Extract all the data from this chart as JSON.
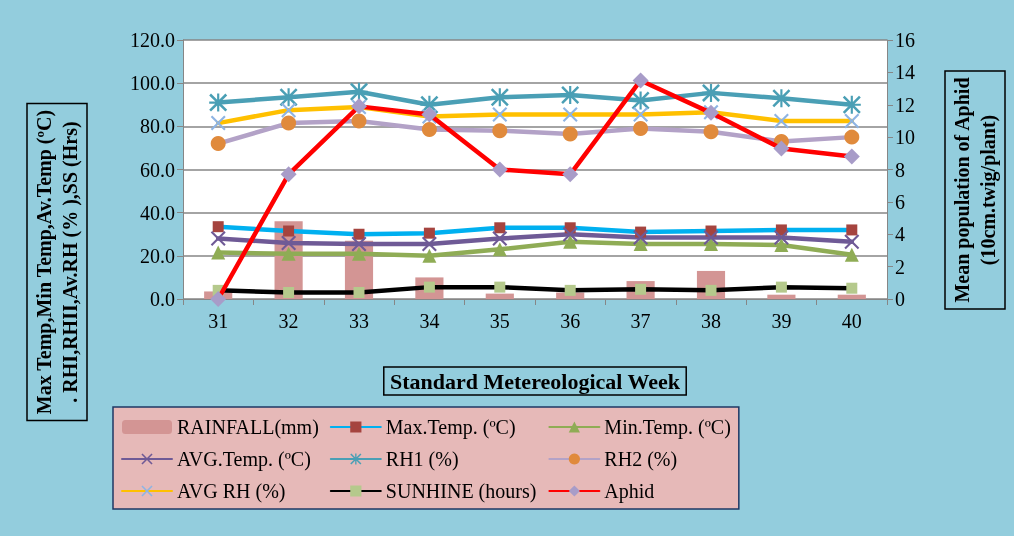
{
  "chart_data": {
    "type": "line",
    "xlabel": "Standard Metereological Week",
    "ylabel": "Max Temp,Min Temp,Av.Temp (ºC)\n. RHI,RHII,Av.RH (% ),SS (Hrs)",
    "y2label": "Mean population of Aphid\n(10cm.twig/plant)",
    "categories": [
      "31",
      "32",
      "33",
      "34",
      "35",
      "36",
      "37",
      "38",
      "39",
      "40"
    ],
    "ylim": [
      0,
      120
    ],
    "yticks": [
      {
        "value": 0,
        "label": "0.0"
      },
      {
        "value": 20,
        "label": "20.0"
      },
      {
        "value": 40,
        "label": "40.0"
      },
      {
        "value": 60,
        "label": "60.0"
      },
      {
        "value": 80,
        "label": "80.0"
      },
      {
        "value": 100,
        "label": "100.0"
      },
      {
        "value": 120,
        "label": "120.0"
      }
    ],
    "y2lim": [
      0,
      16
    ],
    "y2ticks": [
      0,
      2,
      4,
      6,
      8,
      10,
      12,
      14,
      16
    ],
    "grid": "y",
    "legend": "bottom",
    "series": [
      {
        "name": "RAINFALL(mm)",
        "type": "bar",
        "color": "#d39594",
        "values": [
          3.5,
          36,
          27,
          10,
          2.5,
          3,
          8.3,
          13,
          2,
          2
        ]
      },
      {
        "name": "Max.Temp. (ºC)",
        "color": "#00b0f0",
        "marker": "square",
        "colors": [
          "#a5443f",
          "#a5443f",
          "#a5443f",
          "#a5443f",
          "#a5443f",
          "#a5443f",
          "#a5443f",
          "#a5443f",
          "#a5443f",
          "#a5443f"
        ],
        "values": [
          33.5,
          31.5,
          30,
          30.5,
          33,
          33,
          31,
          31.5,
          32,
          32
        ]
      },
      {
        "name": "Min.Temp. (ºC)",
        "color": "#8fac55",
        "marker": "triangle",
        "values": [
          21.5,
          21,
          21,
          20,
          23,
          26.5,
          25.5,
          25.5,
          25,
          20.5
        ]
      },
      {
        "name": "AVG.Temp. (ºC)",
        "color": "#6f5a96",
        "marker": "cross",
        "values": [
          28,
          26,
          25.5,
          25.5,
          28,
          30,
          28.5,
          28.5,
          28.5,
          26.5
        ]
      },
      {
        "name": "RH1 (%)",
        "color": "#4a9fb5",
        "marker": "star",
        "values": [
          91,
          93.5,
          96,
          90,
          93.5,
          94.5,
          92,
          95.5,
          93,
          90
        ]
      },
      {
        "name": "RH2 (%)",
        "color": "#b3a2c7",
        "marker": "circle",
        "colors": [
          "#e08a3c",
          "#e08a3c",
          "#e08a3c",
          "#e08a3c",
          "#e08a3c",
          "#e08a3c",
          "#e08a3c",
          "#e08a3c",
          "#e08a3c",
          "#e08a3c"
        ],
        "values": [
          72,
          81.5,
          82.5,
          78.5,
          78,
          76.5,
          79,
          77.5,
          73,
          75
        ]
      },
      {
        "name": "AVG RH (%)",
        "color": "#ffc000",
        "marker": "cross",
        "colors": [
          "#8eb4e3",
          "#8eb4e3",
          "#8eb4e3",
          "#8eb4e3",
          "#8eb4e3",
          "#8eb4e3",
          "#8eb4e3",
          "#8eb4e3",
          "#8eb4e3",
          "#8eb4e3"
        ],
        "values": [
          81.5,
          87.5,
          89,
          84.5,
          85.5,
          85.5,
          85.5,
          86.5,
          82.5,
          82.5
        ]
      },
      {
        "name": "SUNHINE (hours)",
        "color": "#000000",
        "marker": "square",
        "colors": [
          "#b5c98c",
          "#b5c98c",
          "#b5c98c",
          "#b5c98c",
          "#b5c98c",
          "#b5c98c",
          "#b5c98c",
          "#b5c98c",
          "#b5c98c",
          "#b5c98c"
        ],
        "values": [
          4,
          3,
          3,
          5.5,
          5.5,
          4,
          4.5,
          4,
          5.5,
          5
        ]
      },
      {
        "name": "Aphid",
        "color": "#ff0000",
        "marker": "diamond",
        "axis": "y2",
        "colors": [
          "#a89cc8",
          "#a89cc8",
          "#a89cc8",
          "#a89cc8",
          "#a89cc8",
          "#a89cc8",
          "#a89cc8",
          "#a89cc8",
          "#a89cc8",
          "#a89cc8"
        ],
        "values": [
          0,
          7.7,
          11.9,
          11.4,
          8,
          7.7,
          13.5,
          11.5,
          9.3,
          8.8
        ]
      }
    ]
  }
}
